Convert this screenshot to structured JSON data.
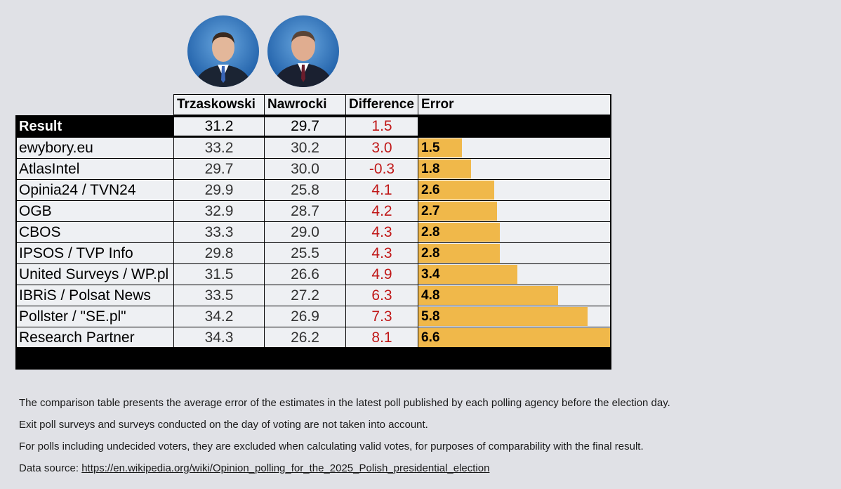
{
  "colors": {
    "background": "#e0e1e6",
    "bar": "#f0b84a",
    "difference_text": "#c01818"
  },
  "candidates": [
    {
      "name": "Trzaskowski",
      "icon": "candidate-portrait-icon"
    },
    {
      "name": "Nawrocki",
      "icon": "candidate-portrait-icon"
    }
  ],
  "headers": {
    "col1": "Trzaskowski",
    "col2": "Nawrocki",
    "col3": "Difference",
    "col4": "Error"
  },
  "result": {
    "label": "Result",
    "trzaskowski": "31.2",
    "nawrocki": "29.7",
    "difference": "1.5"
  },
  "chart_data": {
    "type": "table",
    "title": "",
    "columns": [
      "Trzaskowski",
      "Nawrocki",
      "Difference",
      "Error"
    ],
    "error_max": 6.6,
    "rows": [
      {
        "pollster": "ewybory.eu",
        "trzaskowski": "33.2",
        "nawrocki": "30.2",
        "difference": "3.0",
        "error": 1.5,
        "error_label": "1.5"
      },
      {
        "pollster": "AtlasIntel",
        "trzaskowski": "29.7",
        "nawrocki": "30.0",
        "difference": "-0.3",
        "error": 1.8,
        "error_label": "1.8"
      },
      {
        "pollster": "Opinia24 / TVN24",
        "trzaskowski": "29.9",
        "nawrocki": "25.8",
        "difference": "4.1",
        "error": 2.6,
        "error_label": "2.6"
      },
      {
        "pollster": "OGB",
        "trzaskowski": "32.9",
        "nawrocki": "28.7",
        "difference": "4.2",
        "error": 2.7,
        "error_label": "2.7"
      },
      {
        "pollster": "CBOS",
        "trzaskowski": "33.3",
        "nawrocki": "29.0",
        "difference": "4.3",
        "error": 2.8,
        "error_label": "2.8"
      },
      {
        "pollster": "IPSOS / TVP Info",
        "trzaskowski": "29.8",
        "nawrocki": "25.5",
        "difference": "4.3",
        "error": 2.8,
        "error_label": "2.8"
      },
      {
        "pollster": "United Surveys / WP.pl",
        "trzaskowski": "31.5",
        "nawrocki": "26.6",
        "difference": "4.9",
        "error": 3.4,
        "error_label": "3.4"
      },
      {
        "pollster": "IBRiS / Polsat News",
        "trzaskowski": "33.5",
        "nawrocki": "27.2",
        "difference": "6.3",
        "error": 4.8,
        "error_label": "4.8"
      },
      {
        "pollster": "Pollster / \"SE.pl\"",
        "trzaskowski": "34.2",
        "nawrocki": "26.9",
        "difference": "7.3",
        "error": 5.8,
        "error_label": "5.8"
      },
      {
        "pollster": "Research Partner",
        "trzaskowski": "34.3",
        "nawrocki": "26.2",
        "difference": "8.1",
        "error": 6.6,
        "error_label": "6.6"
      }
    ]
  },
  "notes": {
    "line1": "The comparison table presents the average error of the estimates in the latest poll published by each polling agency before the election day.",
    "line2": "Exit poll surveys and surveys conducted on the day of voting are not taken into account.",
    "line3": "For polls including undecided voters, they are excluded when calculating valid votes, for purposes of comparability with the final result.",
    "source_label": "Data source: ",
    "source_link": "https://en.wikipedia.org/wiki/Opinion_polling_for_the_2025_Polish_presidential_election"
  }
}
